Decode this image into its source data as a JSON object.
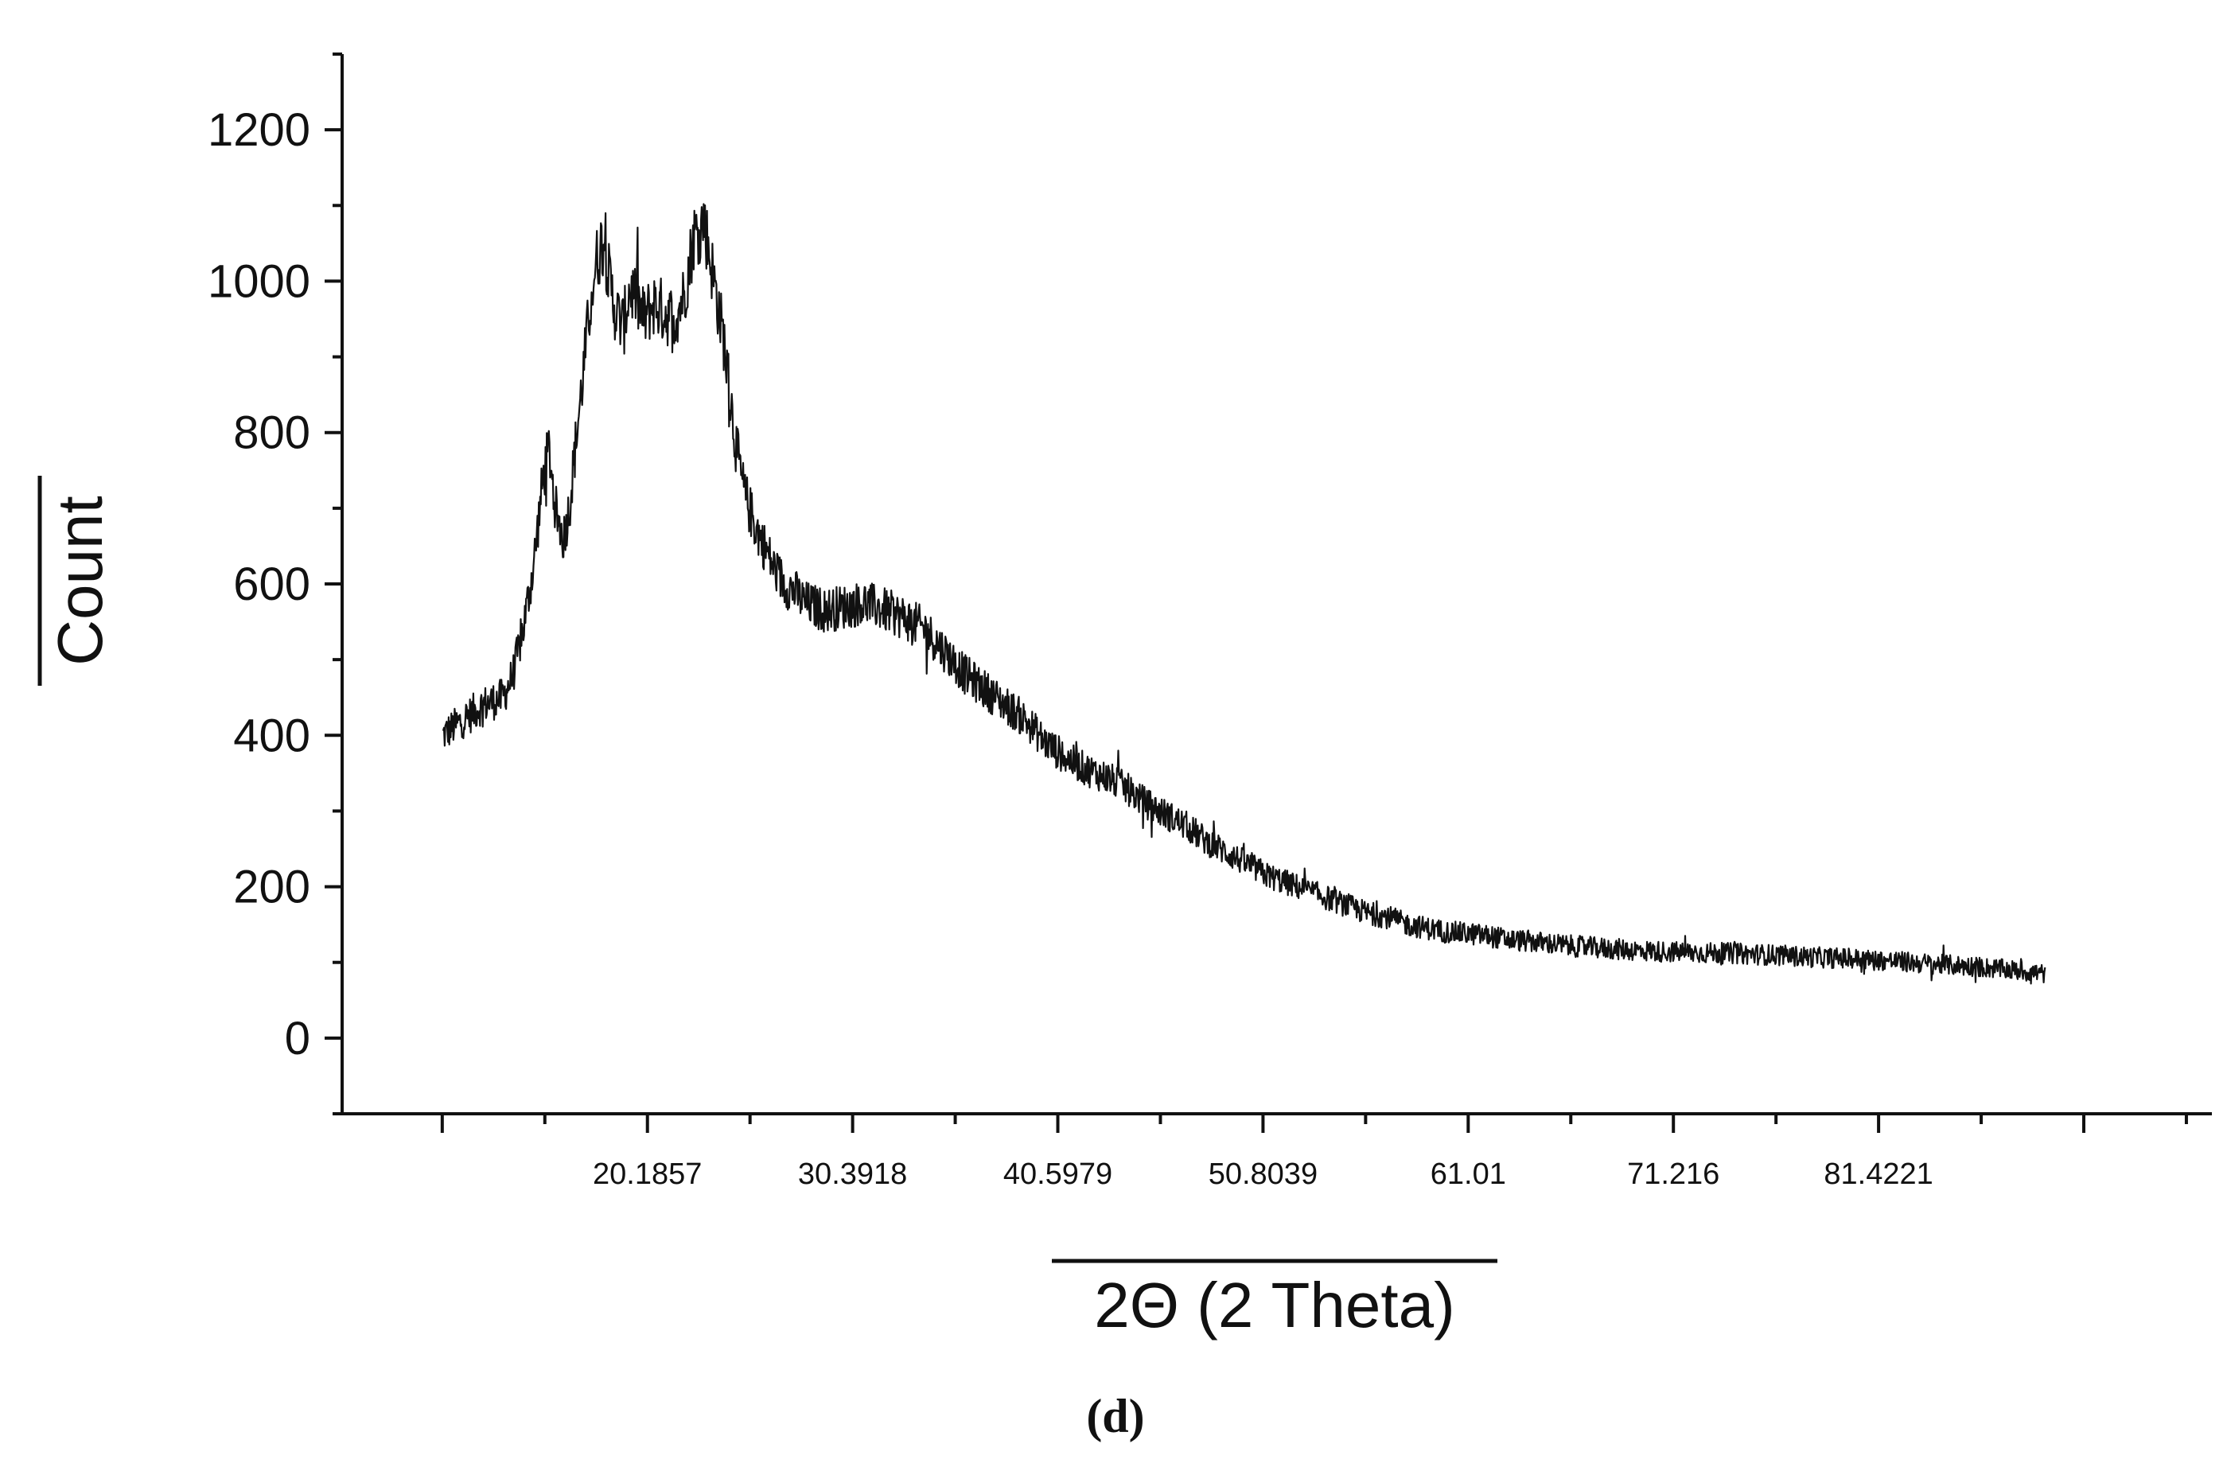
{
  "chart_data": {
    "type": "line",
    "title": "",
    "xlabel": "2Θ (2 Theta)",
    "ylabel": "Count",
    "caption": "(d)",
    "xlim": [
      5,
      98
    ],
    "ylim": [
      -100,
      1300
    ],
    "x_ticks": [
      20.1857,
      30.3918,
      40.5979,
      50.8039,
      61.01,
      71.216,
      81.4221
    ],
    "x_tick_labels": [
      "20.1857",
      "30.3918",
      "40.5979",
      "50.8039",
      "61.01",
      "71.216",
      "81.4221"
    ],
    "y_ticks": [
      0,
      200,
      400,
      600,
      800,
      1000,
      1200
    ],
    "y_tick_labels": [
      "0",
      "200",
      "400",
      "600",
      "800",
      "1000",
      "1200"
    ],
    "grid": false,
    "legend": "none",
    "line_color": "#111111",
    "series": [
      {
        "x": [
          10.0,
          11.0,
          12.0,
          13.0,
          13.5,
          14.0,
          14.5,
          15.0,
          15.3,
          15.6,
          16.0,
          16.3,
          16.6,
          17.0,
          17.3,
          17.6,
          18.0,
          18.3,
          18.6,
          19.0,
          19.3,
          19.6,
          20.0,
          20.5,
          21.0,
          21.5,
          22.0,
          22.5,
          23.0,
          23.5,
          24.0,
          24.3,
          24.6,
          25.0,
          25.5,
          26.0,
          26.5,
          27.0,
          27.5,
          28.0,
          29.0,
          30.0,
          31.0,
          32.0,
          33.0,
          34.0,
          35.0,
          36.0,
          37.0,
          38.0,
          39.0,
          40.0,
          41.0,
          42.0,
          43.0,
          44.0,
          45.0,
          46.0,
          47.0,
          48.0,
          49.0,
          50.0,
          51.0,
          52.0,
          53.0,
          54.0,
          55.0,
          56.0,
          57.0,
          58.0,
          59.0,
          60.0,
          61.0,
          62.0,
          63.0,
          64.0,
          65.0,
          66.0,
          67.0,
          68.0,
          70.0,
          72.0,
          74.0,
          76.0,
          78.0,
          80.0,
          82.0,
          84.0,
          86.0,
          88.0,
          89.7
        ],
        "y": [
          400,
          420,
          440,
          450,
          480,
          540,
          620,
          740,
          780,
          700,
          660,
          700,
          780,
          880,
          960,
          1020,
          1060,
          1000,
          960,
          940,
          990,
          980,
          950,
          970,
          960,
          950,
          980,
          1060,
          1080,
          1000,
          920,
          850,
          780,
          720,
          680,
          650,
          620,
          600,
          590,
          575,
          565,
          570,
          575,
          565,
          555,
          540,
          510,
          480,
          460,
          440,
          420,
          390,
          370,
          355,
          345,
          330,
          310,
          295,
          280,
          260,
          245,
          230,
          215,
          205,
          195,
          185,
          175,
          165,
          160,
          150,
          145,
          140,
          138,
          135,
          130,
          128,
          125,
          122,
          120,
          118,
          115,
          113,
          112,
          110,
          107,
          105,
          102,
          98,
          95,
          90,
          85
        ]
      }
    ]
  }
}
